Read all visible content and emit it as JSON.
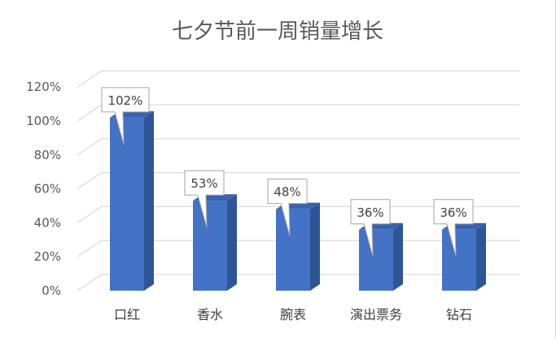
{
  "chart_data": {
    "type": "bar",
    "title": "七夕节前一周销量增长",
    "categories": [
      "口红",
      "香水",
      "腕表",
      "演出票务",
      "钻石"
    ],
    "values": [
      102,
      53,
      48,
      36,
      36
    ],
    "data_labels": [
      "102%",
      "53%",
      "48%",
      "36%",
      "36%"
    ],
    "y_ticks": [
      "0%",
      "20%",
      "40%",
      "60%",
      "80%",
      "100%",
      "120%"
    ],
    "ylim": [
      0,
      120
    ],
    "grid": true,
    "legend": "none",
    "style": "3d-column",
    "colors": {
      "bar_front": "#4472c4",
      "bar_side": "#2f5597",
      "bar_top": "#3a63ad",
      "grid": "#d9d9d9",
      "callout_border": "#a6a6a6"
    }
  }
}
